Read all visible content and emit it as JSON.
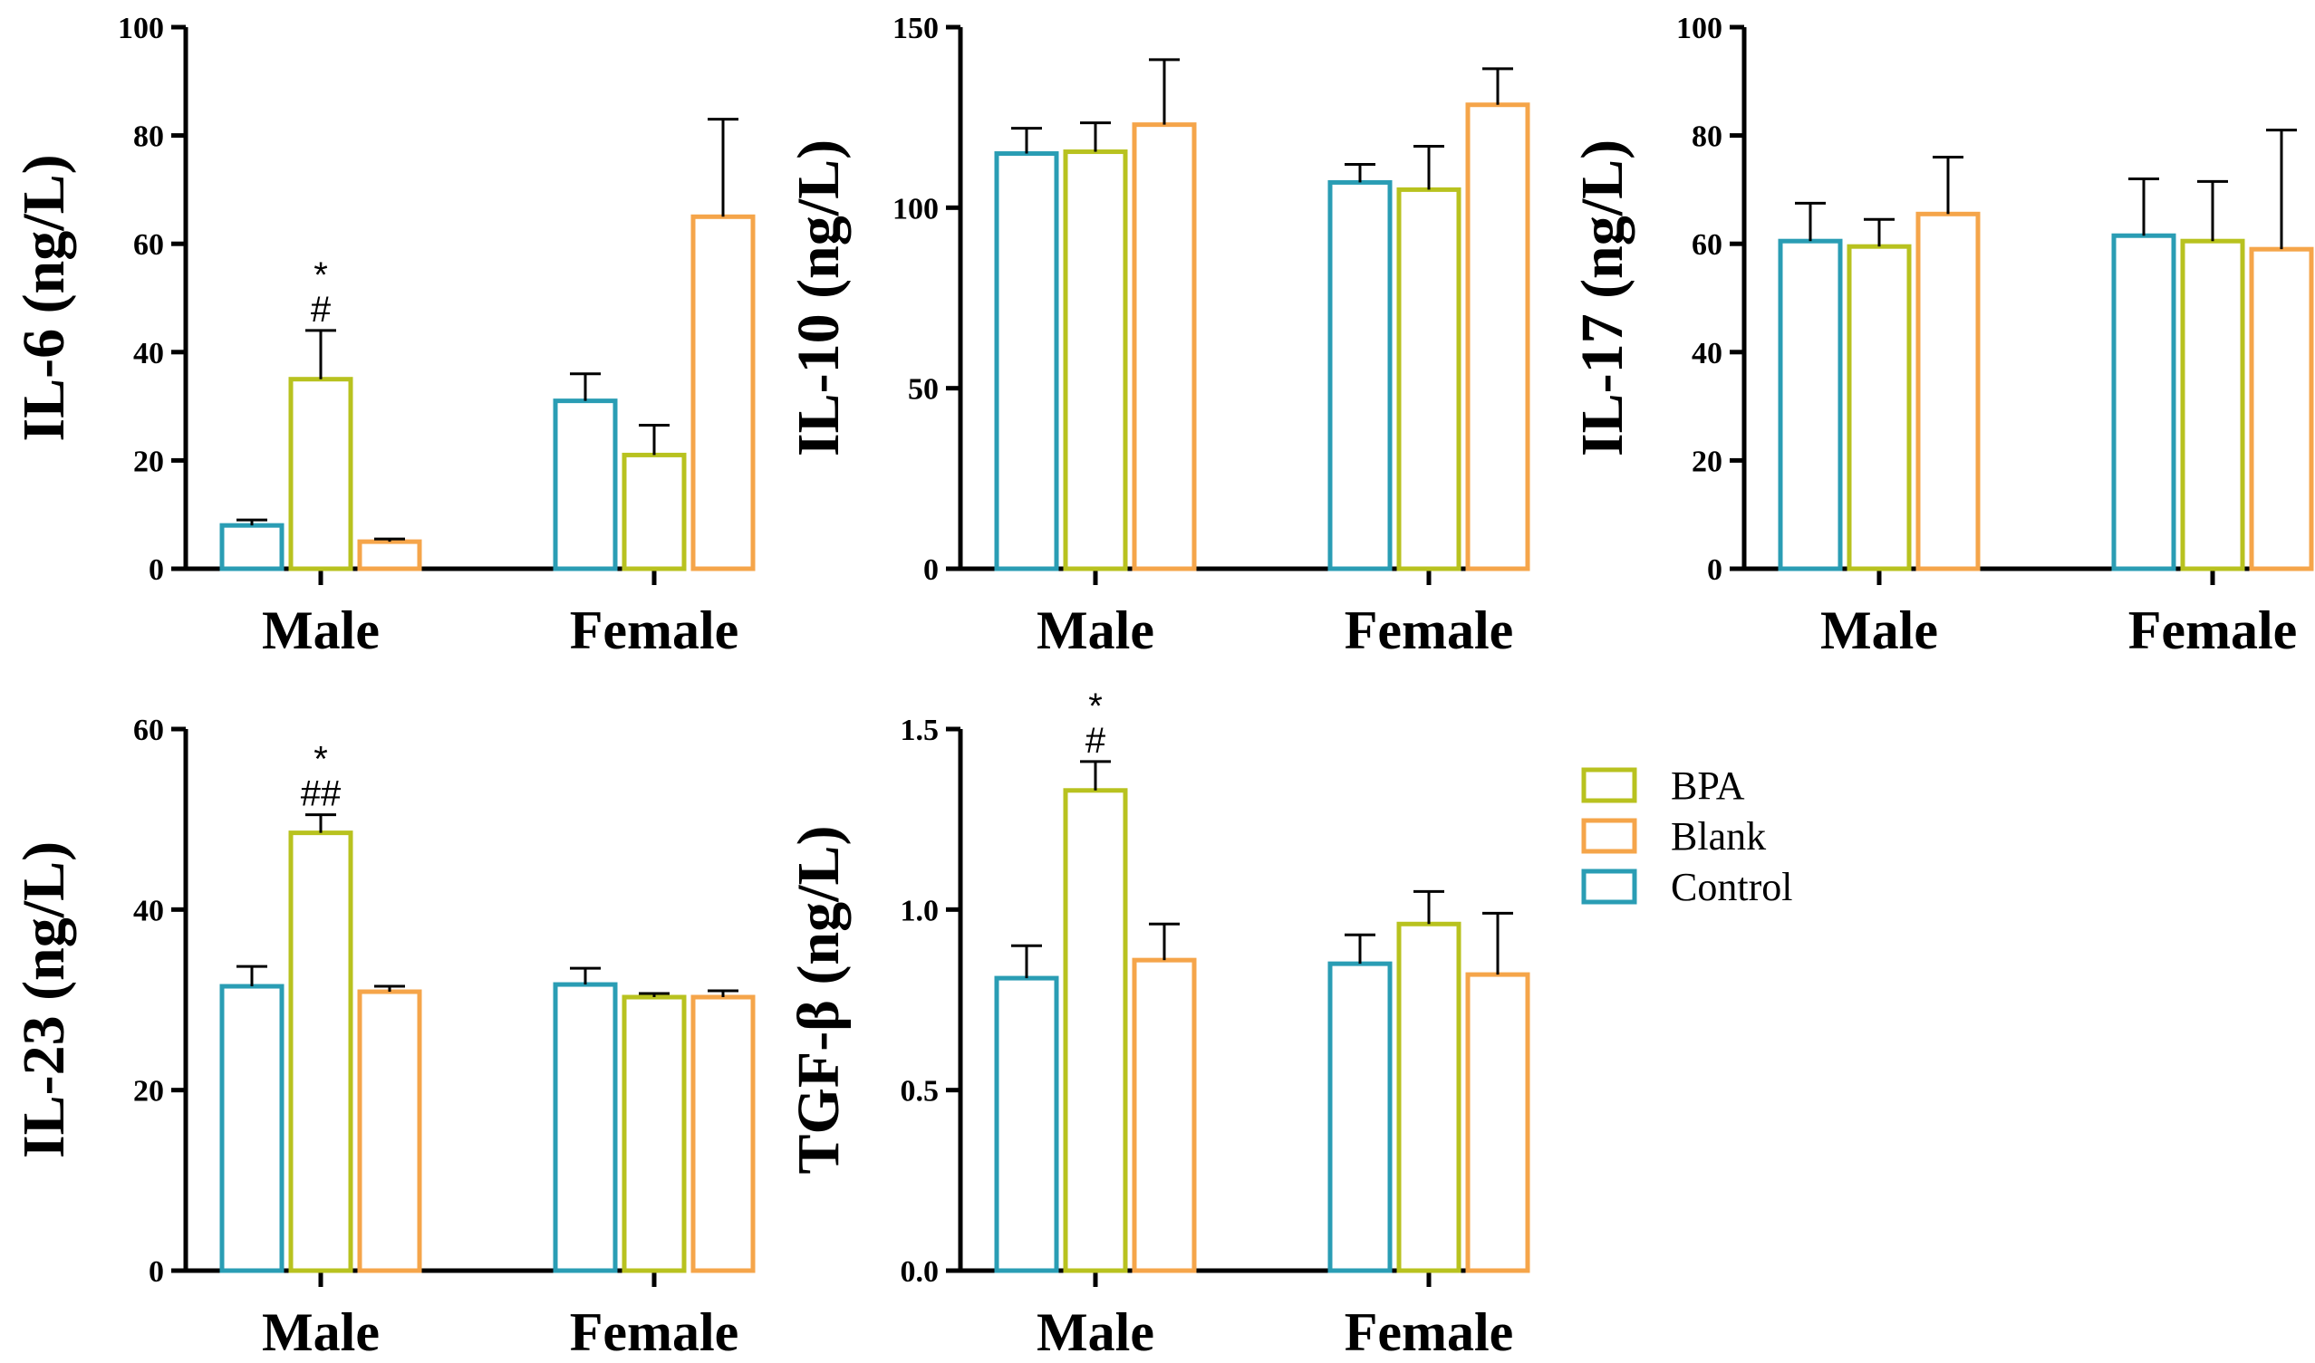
{
  "series_order": [
    "Control",
    "BPA",
    "Blank"
  ],
  "colors": {
    "Control": "#2a9db4",
    "BPA": "#b8c21f",
    "Blank": "#f5a54a"
  },
  "legend": [
    {
      "name": "BPA",
      "color": "#b8c21f"
    },
    {
      "name": "Blank",
      "color": "#f5a54a"
    },
    {
      "name": "Control",
      "color": "#2a9db4"
    }
  ],
  "chart_data": [
    {
      "type": "bar",
      "title": "",
      "ylabel": "IL-6 (ng/L)",
      "categories": [
        "Male",
        "Female"
      ],
      "ylim": [
        0,
        100
      ],
      "yticks": [
        "0",
        "20",
        "40",
        "60",
        "80",
        "100"
      ],
      "ytick_values": [
        0,
        20,
        40,
        60,
        80,
        100
      ],
      "series": [
        {
          "name": "Control",
          "values": [
            8,
            31
          ],
          "errors": [
            1,
            5
          ]
        },
        {
          "name": "BPA",
          "values": [
            35,
            21
          ],
          "errors": [
            9,
            5.5
          ]
        },
        {
          "name": "Blank",
          "values": [
            5,
            65
          ],
          "errors": [
            0.5,
            18
          ]
        }
      ],
      "annotations": [
        {
          "category": 0,
          "series": "BPA",
          "lines": [
            "*",
            "#"
          ]
        }
      ]
    },
    {
      "type": "bar",
      "title": "",
      "ylabel": "IL-10 (ng/L)",
      "categories": [
        "Male",
        "Female"
      ],
      "ylim": [
        0,
        150
      ],
      "yticks": [
        "0",
        "50",
        "100",
        "150"
      ],
      "ytick_values": [
        0,
        50,
        100,
        150
      ],
      "series": [
        {
          "name": "Control",
          "values": [
            115,
            107
          ],
          "errors": [
            7,
            5
          ]
        },
        {
          "name": "BPA",
          "values": [
            115.5,
            105
          ],
          "errors": [
            8,
            12
          ]
        },
        {
          "name": "Blank",
          "values": [
            123,
            128.5
          ],
          "errors": [
            18,
            10
          ]
        }
      ],
      "annotations": []
    },
    {
      "type": "bar",
      "title": "",
      "ylabel": "IL-17 (ng/L)",
      "categories": [
        "Male",
        "Female"
      ],
      "ylim": [
        0,
        100
      ],
      "yticks": [
        "0",
        "20",
        "40",
        "60",
        "80",
        "100"
      ],
      "ytick_values": [
        0,
        20,
        40,
        60,
        80,
        100
      ],
      "series": [
        {
          "name": "Control",
          "values": [
            60.5,
            61.5
          ],
          "errors": [
            7,
            10.5
          ]
        },
        {
          "name": "BPA",
          "values": [
            59.5,
            60.5
          ],
          "errors": [
            5,
            11
          ]
        },
        {
          "name": "Blank",
          "values": [
            65.5,
            59
          ],
          "errors": [
            10.5,
            22
          ]
        }
      ],
      "annotations": []
    },
    {
      "type": "bar",
      "title": "",
      "ylabel": "IL-23 (ng/L)",
      "categories": [
        "Male",
        "Female"
      ],
      "ylim": [
        0,
        60
      ],
      "yticks": [
        "0",
        "20",
        "40",
        "60"
      ],
      "ytick_values": [
        0,
        20,
        40,
        60
      ],
      "series": [
        {
          "name": "Control",
          "values": [
            31.5,
            31.7
          ],
          "errors": [
            2.2,
            1.8
          ]
        },
        {
          "name": "BPA",
          "values": [
            48.5,
            30.3
          ],
          "errors": [
            2,
            0.4
          ]
        },
        {
          "name": "Blank",
          "values": [
            30.9,
            30.3
          ],
          "errors": [
            0.6,
            0.7
          ]
        }
      ],
      "annotations": [
        {
          "category": 0,
          "series": "BPA",
          "lines": [
            "*",
            "##"
          ]
        }
      ]
    },
    {
      "type": "bar",
      "title": "",
      "ylabel": "TGF-β (ng/L)",
      "categories": [
        "Male",
        "Female"
      ],
      "ylim": [
        0,
        1.5
      ],
      "yticks": [
        "0.0",
        "0.5",
        "1.0",
        "1.5"
      ],
      "ytick_values": [
        0,
        0.5,
        1.0,
        1.5
      ],
      "series": [
        {
          "name": "Control",
          "values": [
            0.81,
            0.85
          ],
          "errors": [
            0.09,
            0.08
          ]
        },
        {
          "name": "BPA",
          "values": [
            1.33,
            0.96
          ],
          "errors": [
            0.08,
            0.09
          ]
        },
        {
          "name": "Blank",
          "values": [
            0.86,
            0.82
          ],
          "errors": [
            0.1,
            0.17
          ]
        }
      ],
      "annotations": [
        {
          "category": 0,
          "series": "BPA",
          "lines": [
            "*",
            "#"
          ]
        }
      ]
    }
  ]
}
